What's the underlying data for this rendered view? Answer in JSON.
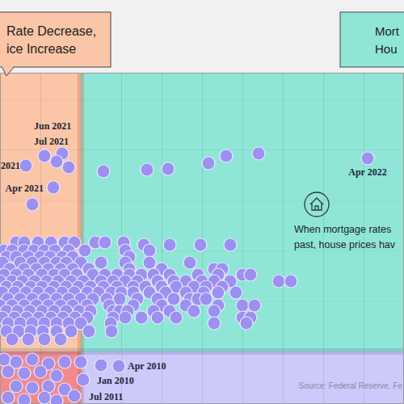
{
  "chart_data": {
    "type": "scatter",
    "color": "#9c90f0",
    "marker": "circle",
    "grid": true,
    "tick_labels": false,
    "xlim": [
      -0.5,
      2.0
    ],
    "ylim": [
      -5.2,
      27.6
    ],
    "xticks": [
      -0.25,
      0,
      0.25,
      0.5,
      0.75,
      1,
      1.25,
      1.5,
      1.75
    ],
    "yticks": [
      0,
      5,
      10,
      15,
      20,
      25
    ],
    "quadrant_labels": [
      {
        "lines": [
          "Rate Decrease,",
          "ice Increase"
        ]
      },
      {
        "lines": [
          "Mort",
          "Hou"
        ]
      }
    ],
    "note": [
      "When mortgage rates",
      "past, house prices hav"
    ],
    "source": "Source: Federal Reserve, Fe",
    "annotations": [
      {
        "text": "Jun 2021",
        "x": -0.225,
        "y": 19.36
      },
      {
        "text": "Jul 2021",
        "x": -0.115,
        "y": 19.6
      },
      {
        "text": "2021",
        "x": -0.34,
        "y": 18.4
      },
      {
        "text": "Apr 2021",
        "x": -0.17,
        "y": 16.24
      },
      {
        "text": "Apr 2022",
        "x": 1.775,
        "y": 19.12
      },
      {
        "text": "Apr 2010",
        "x": 0.235,
        "y": -1.44
      },
      {
        "text": "Jan 2010",
        "x": 0.015,
        "y": -2.8
      },
      {
        "text": "Jul 2011",
        "x": -0.04,
        "y": -4.4
      }
    ],
    "x": [
      -0.225,
      -0.115,
      -0.34,
      -0.17,
      1.775,
      -0.15,
      -0.075,
      -0.3,
      0.14,
      0.41,
      0.54,
      0.79,
      0.9,
      1.1,
      -0.4,
      -0.35,
      -0.265,
      -0.185,
      -0.1,
      -0.04,
      0.09,
      0.15,
      0.265,
      0.39,
      0.55,
      0.74,
      0.925,
      -0.475,
      -0.425,
      -0.35,
      -0.29,
      -0.225,
      -0.16,
      -0.075,
      0.025,
      0.275,
      0.425,
      -0.46,
      -0.4,
      -0.325,
      -0.25,
      -0.19,
      -0.115,
      -0.05,
      0.3,
      -0.485,
      -0.375,
      -0.3,
      -0.225,
      -0.15,
      -0.09,
      0,
      0.125,
      0.275,
      0.425,
      0.675,
      -0.44,
      -0.35,
      -0.275,
      -0.2,
      -0.125,
      -0.05,
      0.05,
      0.3,
      0.5,
      0.825,
      0.875,
      -0.475,
      -0.4,
      -0.325,
      -0.24,
      -0.165,
      -0.1,
      -0.025,
      0.075,
      0.15,
      0.225,
      0.3,
      0.375,
      0.45,
      0.55,
      0.725,
      0.85,
      1.0,
      1.05,
      -0.5,
      -0.425,
      -0.36,
      -0.285,
      -0.21,
      -0.14,
      -0.06,
      0.015,
      0.125,
      0.2,
      0.275,
      0.35,
      0.475,
      0.575,
      0.65,
      0.75,
      0.825,
      0.925,
      1.225,
      1.3,
      -0.46,
      -0.39,
      -0.31,
      -0.24,
      -0.165,
      -0.09,
      -0.015,
      0.06,
      0.14,
      0.225,
      0.325,
      0.4,
      0.5,
      0.59,
      0.7,
      0.775,
      0.875,
      -0.485,
      -0.41,
      -0.34,
      -0.265,
      -0.19,
      -0.115,
      -0.04,
      0.04,
      0.11,
      0.19,
      0.25,
      0.325,
      0.425,
      0.525,
      0.65,
      0.76,
      0.85,
      0.96,
      -0.45,
      -0.375,
      -0.3,
      -0.225,
      -0.15,
      -0.075,
      0,
      0.075,
      0.16,
      0.24,
      0.35,
      0.475,
      0.575,
      0.675,
      0.725,
      0.775,
      -0.5,
      -0.425,
      -0.35,
      -0.275,
      -0.2,
      -0.125,
      -0.05,
      0.04,
      0.175,
      0.325,
      0.5,
      0.65,
      0.85,
      1.0,
      1.075,
      -0.46,
      -0.39,
      -0.315,
      -0.24,
      -0.165,
      -0.09,
      -0.01,
      0.06,
      0.2,
      0.24,
      0.29,
      0.45,
      0.55,
      0.7,
      0.825,
      -0.485,
      -0.41,
      -0.335,
      -0.26,
      -0.185,
      -0.11,
      -0.035,
      0.04,
      0.2,
      0.275,
      0.375,
      0.475,
      0.59,
      1.0,
      1.05,
      -0.45,
      -0.375,
      -0.3,
      -0.225,
      -0.15,
      -0.075,
      0,
      0.185,
      0.825,
      1.025,
      -0.46,
      -0.385,
      -0.31,
      -0.235,
      -0.15,
      -0.06,
      0.05,
      0.19,
      -0.425,
      -0.325,
      -0.225,
      -0.125,
      -0.475,
      -0.4,
      -0.3,
      -0.2,
      -0.1,
      0,
      0.125,
      0.235,
      -0.45,
      -0.35,
      -0.25,
      -0.15,
      0.015,
      -0.4,
      -0.3,
      -0.2,
      -0.1,
      -0.04,
      -0.45,
      -0.35,
      -0.225,
      -0.15
    ],
    "values": [
      19.36,
      19.6,
      18.4,
      16.24,
      19.12,
      18.8,
      18.24,
      14.56,
      17.84,
      18.0,
      18.08,
      18.64,
      19.36,
      19.6,
      10.8,
      10.8,
      10.8,
      10.8,
      10.8,
      10.8,
      10.8,
      10.8,
      10.8,
      10.56,
      10.56,
      10.56,
      10.56,
      10,
      10,
      10,
      10,
      10,
      10,
      10,
      10,
      10,
      10,
      9.36,
      9.36,
      9.36,
      9.36,
      9.36,
      9.36,
      9.36,
      9.36,
      8.8,
      8.8,
      8.8,
      8.8,
      8.8,
      8.8,
      8.8,
      8.8,
      8.8,
      8.8,
      8.8,
      8.16,
      8.16,
      8.16,
      8.16,
      8.16,
      8.16,
      8.16,
      8.16,
      8.16,
      8.16,
      8.16,
      7.6,
      7.6,
      7.6,
      7.6,
      7.6,
      7.6,
      7.6,
      7.6,
      7.6,
      7.6,
      7.6,
      7.6,
      7.6,
      7.6,
      7.6,
      7.6,
      7.6,
      7.6,
      6.96,
      6.96,
      6.96,
      6.96,
      6.96,
      6.96,
      6.96,
      6.96,
      6.96,
      6.96,
      6.96,
      6.96,
      6.96,
      6.96,
      6.96,
      6.96,
      6.96,
      6.96,
      6.96,
      6.96,
      6.4,
      6.4,
      6.4,
      6.4,
      6.4,
      6.4,
      6.4,
      6.4,
      6.4,
      6.4,
      6.4,
      6.4,
      6.4,
      6.4,
      6.4,
      6.4,
      6.4,
      5.84,
      5.84,
      5.84,
      5.84,
      5.84,
      5.84,
      5.84,
      5.84,
      5.84,
      5.84,
      5.84,
      5.84,
      5.84,
      5.84,
      5.84,
      5.84,
      5.84,
      5.84,
      5.2,
      5.2,
      5.2,
      5.2,
      5.2,
      5.2,
      5.2,
      5.2,
      5.2,
      5.2,
      5.2,
      5.2,
      5.2,
      5.2,
      5.2,
      5.2,
      4.56,
      4.56,
      4.56,
      4.56,
      4.56,
      4.56,
      4.56,
      4.56,
      4.56,
      4.56,
      4.56,
      4.56,
      4.56,
      4.56,
      4.56,
      4,
      4,
      4,
      4,
      4,
      4,
      4,
      4,
      4,
      4,
      4,
      4,
      4,
      4,
      4,
      3.36,
      3.36,
      3.36,
      3.36,
      3.36,
      3.36,
      3.36,
      3.36,
      3.36,
      3.36,
      3.36,
      3.36,
      3.36,
      3.36,
      3.36,
      2.8,
      2.8,
      2.8,
      2.8,
      2.8,
      2.8,
      2.8,
      2.8,
      2.8,
      2.8,
      2,
      2,
      2,
      2,
      2,
      2,
      2,
      2,
      1.2,
      1.2,
      1.2,
      1.2,
      -0.8,
      -1.04,
      -0.8,
      -1.2,
      -1.04,
      -1.04,
      -1.36,
      -1.44,
      -2.0,
      -2.16,
      -2.0,
      -2.4,
      -2.8,
      -3.44,
      -3.6,
      -3.44,
      -3.76,
      -4.4,
      -4.56,
      -4.8,
      -4.56,
      -4.88
    ]
  }
}
